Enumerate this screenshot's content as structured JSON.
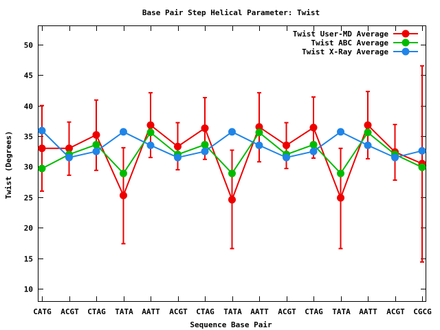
{
  "chart_data": {
    "type": "line",
    "title": "Base Pair Step Helical Parameter: Twist",
    "xlabel": "Sequence Base Pair",
    "ylabel": "Twist (Degrees)",
    "ylim": [
      8,
      53
    ],
    "yticks": [
      10,
      15,
      20,
      25,
      30,
      35,
      40,
      45,
      50
    ],
    "categories": [
      "CATG",
      "ACGT",
      "CTAG",
      "TATA",
      "AATT",
      "ACGT",
      "CTAG",
      "TATA",
      "AATT",
      "ACGT",
      "CTAG",
      "TATA",
      "AATT",
      "ACGT",
      "CGCG"
    ],
    "legend_position": "top-right",
    "grid": false,
    "series": [
      {
        "name": "Twist User-MD Average",
        "color": "#ee0000",
        "values": [
          33.0,
          33.0,
          35.2,
          25.3,
          36.8,
          33.3,
          36.3,
          24.6,
          36.5,
          33.5,
          36.4,
          24.9,
          36.8,
          32.4,
          30.5
        ],
        "error": [
          [
            26.0,
            40.0
          ],
          [
            28.6,
            37.3
          ],
          [
            29.4,
            40.9
          ],
          [
            17.4,
            33.1
          ],
          [
            31.5,
            42.1
          ],
          [
            29.5,
            37.2
          ],
          [
            31.2,
            41.3
          ],
          [
            16.6,
            32.7
          ],
          [
            30.8,
            42.1
          ],
          [
            29.7,
            37.2
          ],
          [
            31.4,
            41.4
          ],
          [
            16.6,
            33.0
          ],
          [
            31.3,
            42.3
          ],
          [
            27.8,
            36.9
          ],
          [
            14.4,
            46.5
          ]
        ]
      },
      {
        "name": "Twist ABC Average",
        "color": "#00bb00",
        "values": [
          29.7,
          32.0,
          33.6,
          28.9,
          35.6,
          32.0,
          33.6,
          28.9,
          35.6,
          32.0,
          33.6,
          28.9,
          35.6,
          32.0,
          29.9
        ]
      },
      {
        "name": "Twist X-Ray Average",
        "color": "#1f85e8",
        "values": [
          35.9,
          31.5,
          32.5,
          35.7,
          33.5,
          31.5,
          32.5,
          35.7,
          33.5,
          31.5,
          32.5,
          35.7,
          33.5,
          31.5,
          32.6
        ]
      }
    ]
  }
}
